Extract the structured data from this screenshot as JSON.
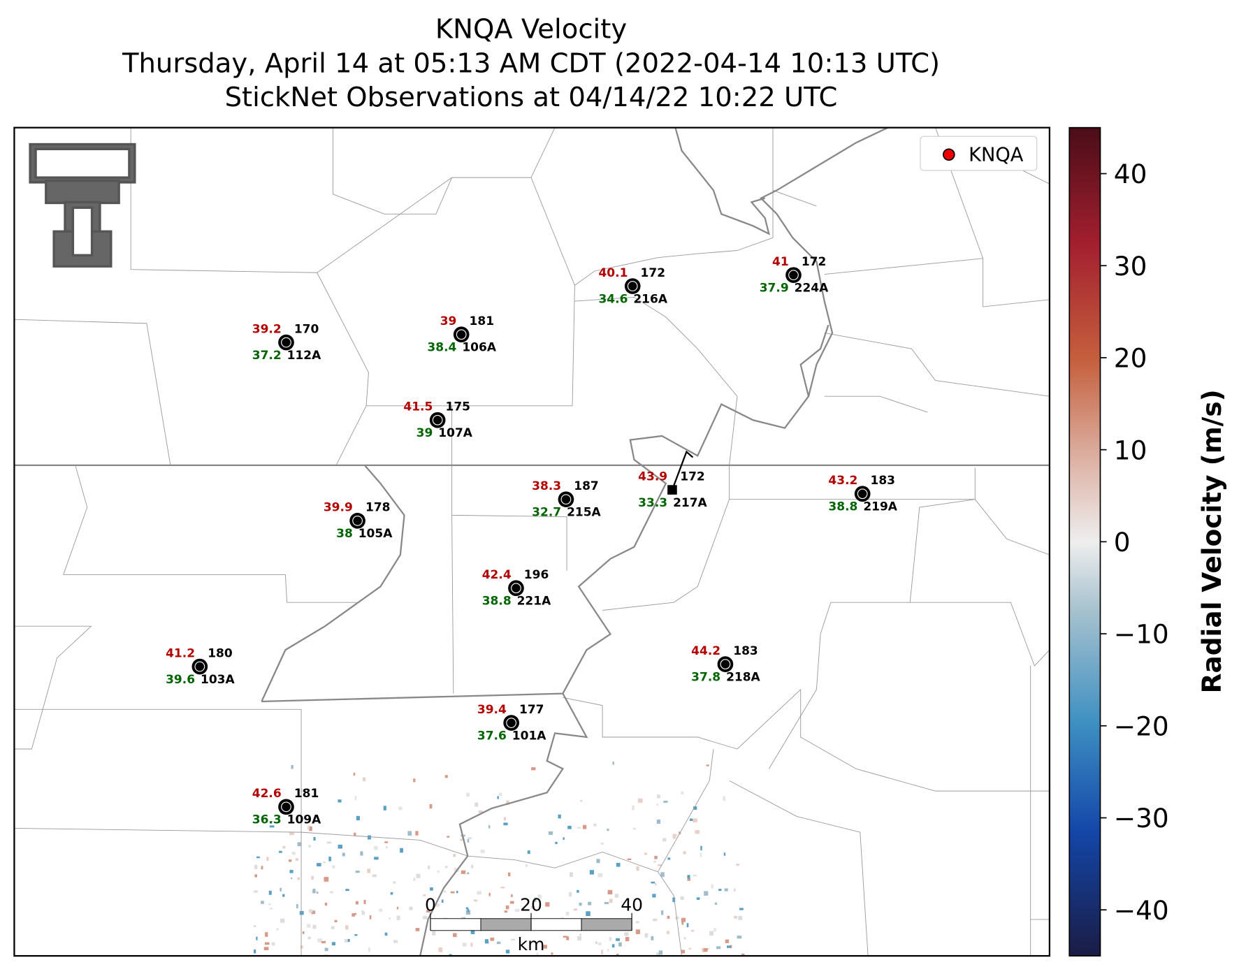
{
  "title_lines": [
    "KNQA Velocity",
    "Thursday, April 14 at 05:13 AM CDT (2022-04-14 10:13 UTC)",
    "StickNet Observations at 04/14/22 10:22 UTC"
  ],
  "legend": {
    "label": "KNQA"
  },
  "stations": [
    {
      "id": "112A",
      "temperature": 39.2,
      "wind_direction": 170,
      "dewpoint": 37.2
    },
    {
      "id": "106A",
      "temperature": 39.0,
      "wind_direction": 181,
      "dewpoint": 38.4
    },
    {
      "id": "216A",
      "temperature": 40.1,
      "wind_direction": 172,
      "dewpoint": 34.6
    },
    {
      "id": "224A",
      "temperature": 41.0,
      "wind_direction": 172,
      "dewpoint": 37.9
    },
    {
      "id": "107A",
      "temperature": 41.5,
      "wind_direction": 175,
      "dewpoint": 39.0
    },
    {
      "id": "215A",
      "temperature": 38.3,
      "wind_direction": 187,
      "dewpoint": 32.7
    },
    {
      "id": "217A",
      "temperature": 43.9,
      "wind_direction": 172,
      "dewpoint": 33.3
    },
    {
      "id": "219A",
      "temperature": 43.2,
      "wind_direction": 183,
      "dewpoint": 38.8
    },
    {
      "id": "105A",
      "temperature": 39.9,
      "wind_direction": 178,
      "dewpoint": 38.0
    },
    {
      "id": "221A",
      "temperature": 42.4,
      "wind_direction": 196,
      "dewpoint": 38.8
    },
    {
      "id": "103A",
      "temperature": 41.2,
      "wind_direction": 180,
      "dewpoint": 39.6
    },
    {
      "id": "218A",
      "temperature": 44.2,
      "wind_direction": 183,
      "dewpoint": 37.8
    },
    {
      "id": "101A",
      "temperature": 39.4,
      "wind_direction": 177,
      "dewpoint": 37.6
    },
    {
      "id": "109A",
      "temperature": 42.6,
      "wind_direction": 181,
      "dewpoint": 36.3
    }
  ],
  "colorbar": {
    "label": "Radial Velocity (m/s)",
    "ylim": [
      -45,
      45
    ],
    "yticks": [
      {
        "value": -40,
        "label": "−40"
      },
      {
        "value": -30,
        "label": "−30"
      },
      {
        "value": -20,
        "label": "−20"
      },
      {
        "value": -10,
        "label": "−10"
      },
      0,
      10,
      20,
      30,
      40
    ]
  },
  "scale_bar": {
    "ticks": [
      0,
      20,
      40
    ],
    "unit": "km"
  }
}
